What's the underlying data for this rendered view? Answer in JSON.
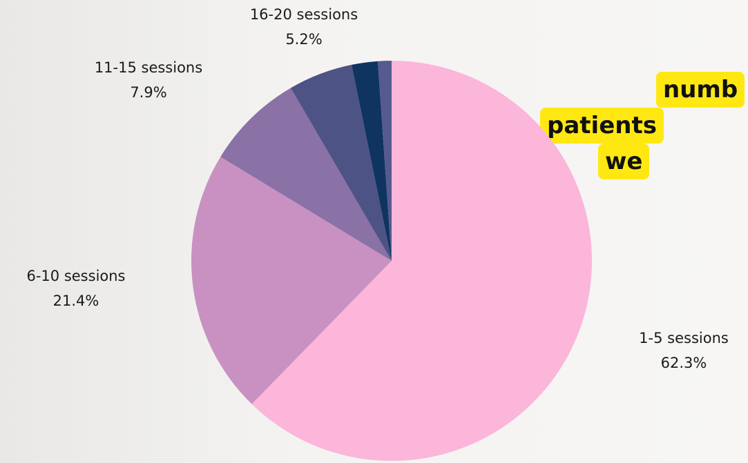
{
  "chart_data": {
    "type": "pie",
    "title_lines": [
      "numb",
      "patients",
      "we"
    ],
    "categories": [
      "1-5 sessions",
      "6-10 sessions",
      "11-15 sessions",
      "16-20 sessions",
      null,
      null
    ],
    "values": [
      62.3,
      21.4,
      7.9,
      5.2,
      2.1,
      1.1
    ],
    "value_labels": [
      "62.3%",
      "21.4%",
      "7.9%",
      "5.2%",
      null,
      null
    ],
    "colors": [
      "#fbb6d9",
      "#c891c1",
      "#8a71a6",
      "#4e5385",
      "#0f3460",
      "#565a8f"
    ]
  }
}
